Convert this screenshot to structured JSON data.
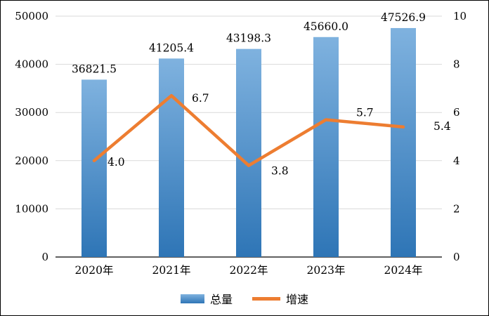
{
  "chart_data": {
    "type": "bar",
    "combo": "bar+line",
    "categories": [
      "2020年",
      "2021年",
      "2022年",
      "2023年",
      "2024年"
    ],
    "series": [
      {
        "name": "总量",
        "type": "bar",
        "axis": "left",
        "values": [
          36821.5,
          41205.4,
          43198.3,
          45660.0,
          47526.9
        ],
        "labels": [
          "36821.5",
          "41205.4",
          "43198.3",
          "45660.0",
          "47526.9"
        ]
      },
      {
        "name": "增速",
        "type": "line",
        "axis": "right",
        "values": [
          4.0,
          6.7,
          3.8,
          5.7,
          5.4
        ],
        "labels": [
          "4.0",
          "6.7",
          "3.8",
          "5.7",
          "5.4"
        ]
      }
    ],
    "left_axis": {
      "min": 0,
      "max": 50000,
      "step": 10000,
      "tick_labels": [
        "0",
        "10000",
        "20000",
        "30000",
        "40000",
        "50000"
      ]
    },
    "right_axis": {
      "min": 0,
      "max": 10,
      "step": 2,
      "tick_labels": [
        "0",
        "2",
        "4",
        "6",
        "8",
        "10"
      ]
    },
    "grid": true,
    "legend_position": "bottom",
    "colors": {
      "bar_top": "#7FB2DF",
      "bar_bottom": "#2E75B6",
      "line": "#ED7D31",
      "gridline": "#D9D9D9",
      "axis": "#000000",
      "text": "#000000"
    }
  }
}
